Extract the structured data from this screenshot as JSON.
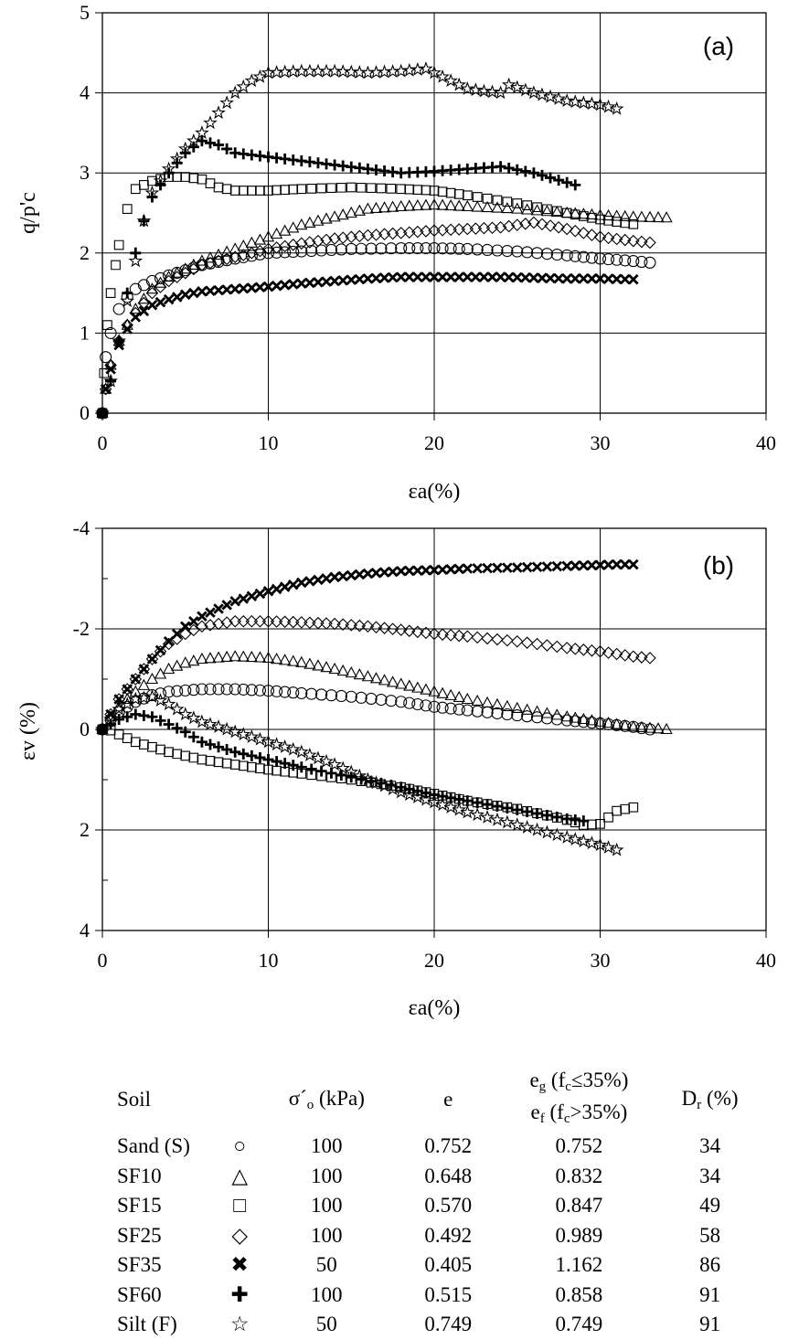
{
  "chart_data": [
    {
      "type": "scatter",
      "panel_label": "(a)",
      "ylabel": "q/p'c",
      "xlabel": "εa(%)",
      "xlim": [
        0,
        40
      ],
      "ylim": [
        0,
        5
      ],
      "xticks": [
        "0",
        "10",
        "20",
        "30",
        "40"
      ],
      "yticks": [
        "0",
        "1",
        "2",
        "3",
        "4",
        "5"
      ],
      "grid": true,
      "series": [
        {
          "name": "Sand (S)",
          "marker": "circle",
          "x": [
            0,
            0.2,
            0.5,
            1,
            1.5,
            2,
            3,
            4,
            6,
            8,
            10,
            12,
            15,
            18,
            20,
            22,
            25,
            28,
            30,
            32,
            33
          ],
          "y": [
            0,
            0.7,
            1.0,
            1.3,
            1.45,
            1.55,
            1.65,
            1.72,
            1.85,
            1.93,
            2.0,
            2.02,
            2.05,
            2.06,
            2.06,
            2.05,
            2.02,
            1.97,
            1.93,
            1.9,
            1.88
          ]
        },
        {
          "name": "SF10",
          "marker": "triangle",
          "x": [
            0,
            0.2,
            0.5,
            1,
            1.5,
            2,
            3,
            4,
            5,
            6,
            8,
            10,
            12,
            14,
            16,
            18,
            20,
            22,
            25,
            28,
            30,
            32,
            34
          ],
          "y": [
            0,
            0.3,
            0.6,
            0.9,
            1.1,
            1.3,
            1.55,
            1.7,
            1.8,
            1.9,
            2.05,
            2.2,
            2.35,
            2.45,
            2.55,
            2.58,
            2.6,
            2.58,
            2.55,
            2.5,
            2.47,
            2.45,
            2.44
          ]
        },
        {
          "name": "SF15",
          "marker": "square",
          "x": [
            0,
            0.1,
            0.3,
            0.5,
            0.8,
            1,
            1.5,
            2,
            3,
            4,
            5,
            6,
            7,
            8,
            10,
            12,
            15,
            18,
            20,
            22,
            25,
            28,
            30,
            32
          ],
          "y": [
            0,
            0.5,
            1.1,
            1.5,
            1.85,
            2.1,
            2.55,
            2.8,
            2.9,
            2.95,
            2.95,
            2.92,
            2.82,
            2.78,
            2.78,
            2.8,
            2.82,
            2.8,
            2.78,
            2.72,
            2.62,
            2.5,
            2.42,
            2.36
          ]
        },
        {
          "name": "SF25",
          "marker": "diamond",
          "x": [
            0,
            0.2,
            0.5,
            1,
            1.5,
            2,
            3,
            4,
            5,
            6,
            8,
            10,
            12,
            14,
            16,
            18,
            20,
            22,
            24,
            26,
            28,
            30,
            32,
            33
          ],
          "y": [
            0,
            0.3,
            0.6,
            0.9,
            1.1,
            1.25,
            1.5,
            1.65,
            1.75,
            1.85,
            1.95,
            2.05,
            2.12,
            2.18,
            2.22,
            2.25,
            2.28,
            2.3,
            2.32,
            2.38,
            2.3,
            2.2,
            2.15,
            2.13
          ]
        },
        {
          "name": "SF35",
          "marker": "x",
          "x": [
            0,
            0.2,
            0.5,
            1,
            1.5,
            2,
            3,
            4,
            5,
            6,
            8,
            10,
            12,
            14,
            16,
            18,
            20,
            22,
            24,
            26,
            28,
            30,
            32
          ],
          "y": [
            0,
            0.3,
            0.55,
            0.85,
            1.05,
            1.2,
            1.35,
            1.42,
            1.48,
            1.52,
            1.55,
            1.58,
            1.62,
            1.65,
            1.68,
            1.7,
            1.7,
            1.7,
            1.7,
            1.69,
            1.68,
            1.68,
            1.67
          ]
        },
        {
          "name": "SF60",
          "marker": "plus",
          "x": [
            0,
            0.5,
            1,
            1.5,
            2,
            2.5,
            3,
            4,
            5,
            6,
            7,
            8,
            10,
            12,
            14,
            16,
            18,
            20,
            22,
            24,
            26,
            28,
            28.5
          ],
          "y": [
            0,
            0.4,
            0.9,
            1.5,
            2.0,
            2.4,
            2.7,
            3.0,
            3.25,
            3.4,
            3.35,
            3.25,
            3.2,
            3.15,
            3.1,
            3.05,
            3.0,
            3.02,
            3.05,
            3.08,
            3.0,
            2.88,
            2.85
          ]
        },
        {
          "name": "Silt (F)",
          "marker": "star",
          "x": [
            0,
            0.5,
            1,
            1.5,
            2,
            2.5,
            3,
            4,
            5,
            6,
            7,
            8,
            9,
            10,
            12,
            14,
            16,
            18,
            19.5,
            20.5,
            22,
            23,
            24,
            24.5,
            26,
            28,
            30,
            31
          ],
          "y": [
            0,
            0.4,
            0.9,
            1.4,
            1.9,
            2.4,
            2.75,
            3.05,
            3.3,
            3.5,
            3.75,
            4.0,
            4.15,
            4.25,
            4.27,
            4.27,
            4.25,
            4.27,
            4.3,
            4.2,
            4.05,
            4.02,
            4.0,
            4.1,
            4.0,
            3.9,
            3.85,
            3.8
          ]
        }
      ]
    },
    {
      "type": "scatter",
      "panel_label": "(b)",
      "ylabel": "εv (%)",
      "xlabel": "εa(%)",
      "xlim": [
        0,
        40
      ],
      "ylim": [
        -4,
        4
      ],
      "y_inverted": true,
      "xticks": [
        "0",
        "10",
        "20",
        "30",
        "40"
      ],
      "yticks": [
        "-4",
        "-2",
        "0",
        "2",
        "4"
      ],
      "grid": true,
      "series": [
        {
          "name": "Sand (S)",
          "marker": "circle",
          "x": [
            0,
            0.5,
            1,
            2,
            3,
            4,
            6,
            8,
            10,
            12,
            15,
            18,
            20,
            22,
            25,
            28,
            30,
            32,
            33
          ],
          "y": [
            0,
            -0.2,
            -0.35,
            -0.55,
            -0.68,
            -0.75,
            -0.8,
            -0.8,
            -0.77,
            -0.72,
            -0.65,
            -0.55,
            -0.45,
            -0.38,
            -0.28,
            -0.18,
            -0.12,
            -0.05,
            0
          ]
        },
        {
          "name": "SF10",
          "marker": "triangle",
          "x": [
            0,
            0.5,
            1,
            2,
            3,
            4,
            5,
            6,
            8,
            10,
            12,
            14,
            16,
            18,
            20,
            22,
            25,
            28,
            30,
            32,
            34
          ],
          "y": [
            0,
            -0.25,
            -0.45,
            -0.75,
            -1.0,
            -1.2,
            -1.32,
            -1.4,
            -1.45,
            -1.42,
            -1.33,
            -1.2,
            -1.05,
            -0.9,
            -0.75,
            -0.6,
            -0.42,
            -0.25,
            -0.15,
            -0.05,
            0
          ]
        },
        {
          "name": "SF15",
          "marker": "square",
          "x": [
            0,
            0.5,
            1,
            2,
            3,
            4,
            6,
            8,
            10,
            12,
            15,
            18,
            20,
            22,
            25,
            28,
            29,
            30,
            30.5,
            31,
            32
          ],
          "y": [
            0,
            0.02,
            0.1,
            0.25,
            0.35,
            0.45,
            0.6,
            0.7,
            0.8,
            0.88,
            1.0,
            1.15,
            1.28,
            1.42,
            1.58,
            1.8,
            1.9,
            1.88,
            1.75,
            1.62,
            1.55
          ]
        },
        {
          "name": "SF25",
          "marker": "diamond",
          "x": [
            0,
            0.5,
            1,
            2,
            3,
            4,
            5,
            6,
            7,
            8,
            10,
            12,
            14,
            16,
            18,
            20,
            22,
            25,
            28,
            30,
            32,
            33
          ],
          "y": [
            0,
            -0.3,
            -0.6,
            -1.0,
            -1.4,
            -1.7,
            -1.9,
            -2.05,
            -2.1,
            -2.15,
            -2.15,
            -2.13,
            -2.1,
            -2.05,
            -1.98,
            -1.9,
            -1.85,
            -1.75,
            -1.62,
            -1.55,
            -1.45,
            -1.42
          ]
        },
        {
          "name": "SF35",
          "marker": "x",
          "x": [
            0,
            0.5,
            1,
            2,
            3,
            4,
            5,
            6,
            8,
            10,
            12,
            14,
            16,
            18,
            20,
            22,
            25,
            28,
            30,
            31,
            32
          ],
          "y": [
            0,
            -0.3,
            -0.6,
            -1.0,
            -1.4,
            -1.75,
            -2.05,
            -2.25,
            -2.55,
            -2.75,
            -2.92,
            -3.03,
            -3.1,
            -3.15,
            -3.17,
            -3.2,
            -3.22,
            -3.25,
            -3.27,
            -3.28,
            -3.28
          ]
        },
        {
          "name": "SF60",
          "marker": "plus",
          "x": [
            0,
            0.5,
            1,
            2,
            3,
            4,
            5,
            6,
            8,
            10,
            12,
            15,
            18,
            20,
            22,
            25,
            28,
            29
          ],
          "y": [
            0,
            -0.1,
            -0.2,
            -0.3,
            -0.25,
            -0.1,
            0.05,
            0.25,
            0.45,
            0.6,
            0.75,
            0.95,
            1.15,
            1.3,
            1.42,
            1.6,
            1.78,
            1.82
          ]
        },
        {
          "name": "Silt (F)",
          "marker": "star",
          "x": [
            0,
            0.5,
            1,
            2,
            3,
            4,
            5,
            6,
            8,
            10,
            12,
            14,
            16,
            18,
            20,
            22,
            25,
            28,
            30,
            31
          ],
          "y": [
            0,
            -0.2,
            -0.4,
            -0.6,
            -0.65,
            -0.5,
            -0.3,
            -0.15,
            0.05,
            0.25,
            0.45,
            0.7,
            1.0,
            1.25,
            1.45,
            1.65,
            1.9,
            2.15,
            2.3,
            2.4
          ]
        }
      ]
    }
  ],
  "legend_table": {
    "headers": {
      "soil": "Soil",
      "sigma_main": "σ´",
      "sigma_sub": "o",
      "sigma_unit": " (kPa)",
      "e": "e",
      "eg_main": "e",
      "eg_sub": "g",
      "eg_cond": " (f",
      "eg_cond_sub": "c",
      "eg_cond_end": "≤35%)",
      "ef_main": "e",
      "ef_sub": "f",
      "ef_cond": " (f",
      "ef_cond_sub": "c",
      "ef_cond_end": ">35%)",
      "dr_main": "D",
      "dr_sub": "r",
      "dr_unit": " (%)"
    },
    "rows": [
      {
        "soil": "Sand (S)",
        "symbol": "○",
        "sigma": "100",
        "e": "0.752",
        "eg": "0.752",
        "dr": "34"
      },
      {
        "soil": "SF10",
        "symbol": "△",
        "sigma": "100",
        "e": "0.648",
        "eg": "0.832",
        "dr": "34"
      },
      {
        "soil": "SF15",
        "symbol": "□",
        "sigma": "100",
        "e": "0.570",
        "eg": "0.847",
        "dr": "49"
      },
      {
        "soil": "SF25",
        "symbol": "◇",
        "sigma": "100",
        "e": "0.492",
        "eg": "0.989",
        "dr": "58"
      },
      {
        "soil": "SF35",
        "symbol": "✖",
        "sigma": "50",
        "e": "0.405",
        "eg": "1.162",
        "dr": "86"
      },
      {
        "soil": "SF60",
        "symbol": "✚",
        "sigma": "100",
        "e": "0.515",
        "eg": "0.858",
        "dr": "91"
      },
      {
        "soil": "Silt (F)",
        "symbol": "☆",
        "sigma": "50",
        "e": "0.749",
        "eg": "0.749",
        "dr": "91"
      }
    ]
  }
}
